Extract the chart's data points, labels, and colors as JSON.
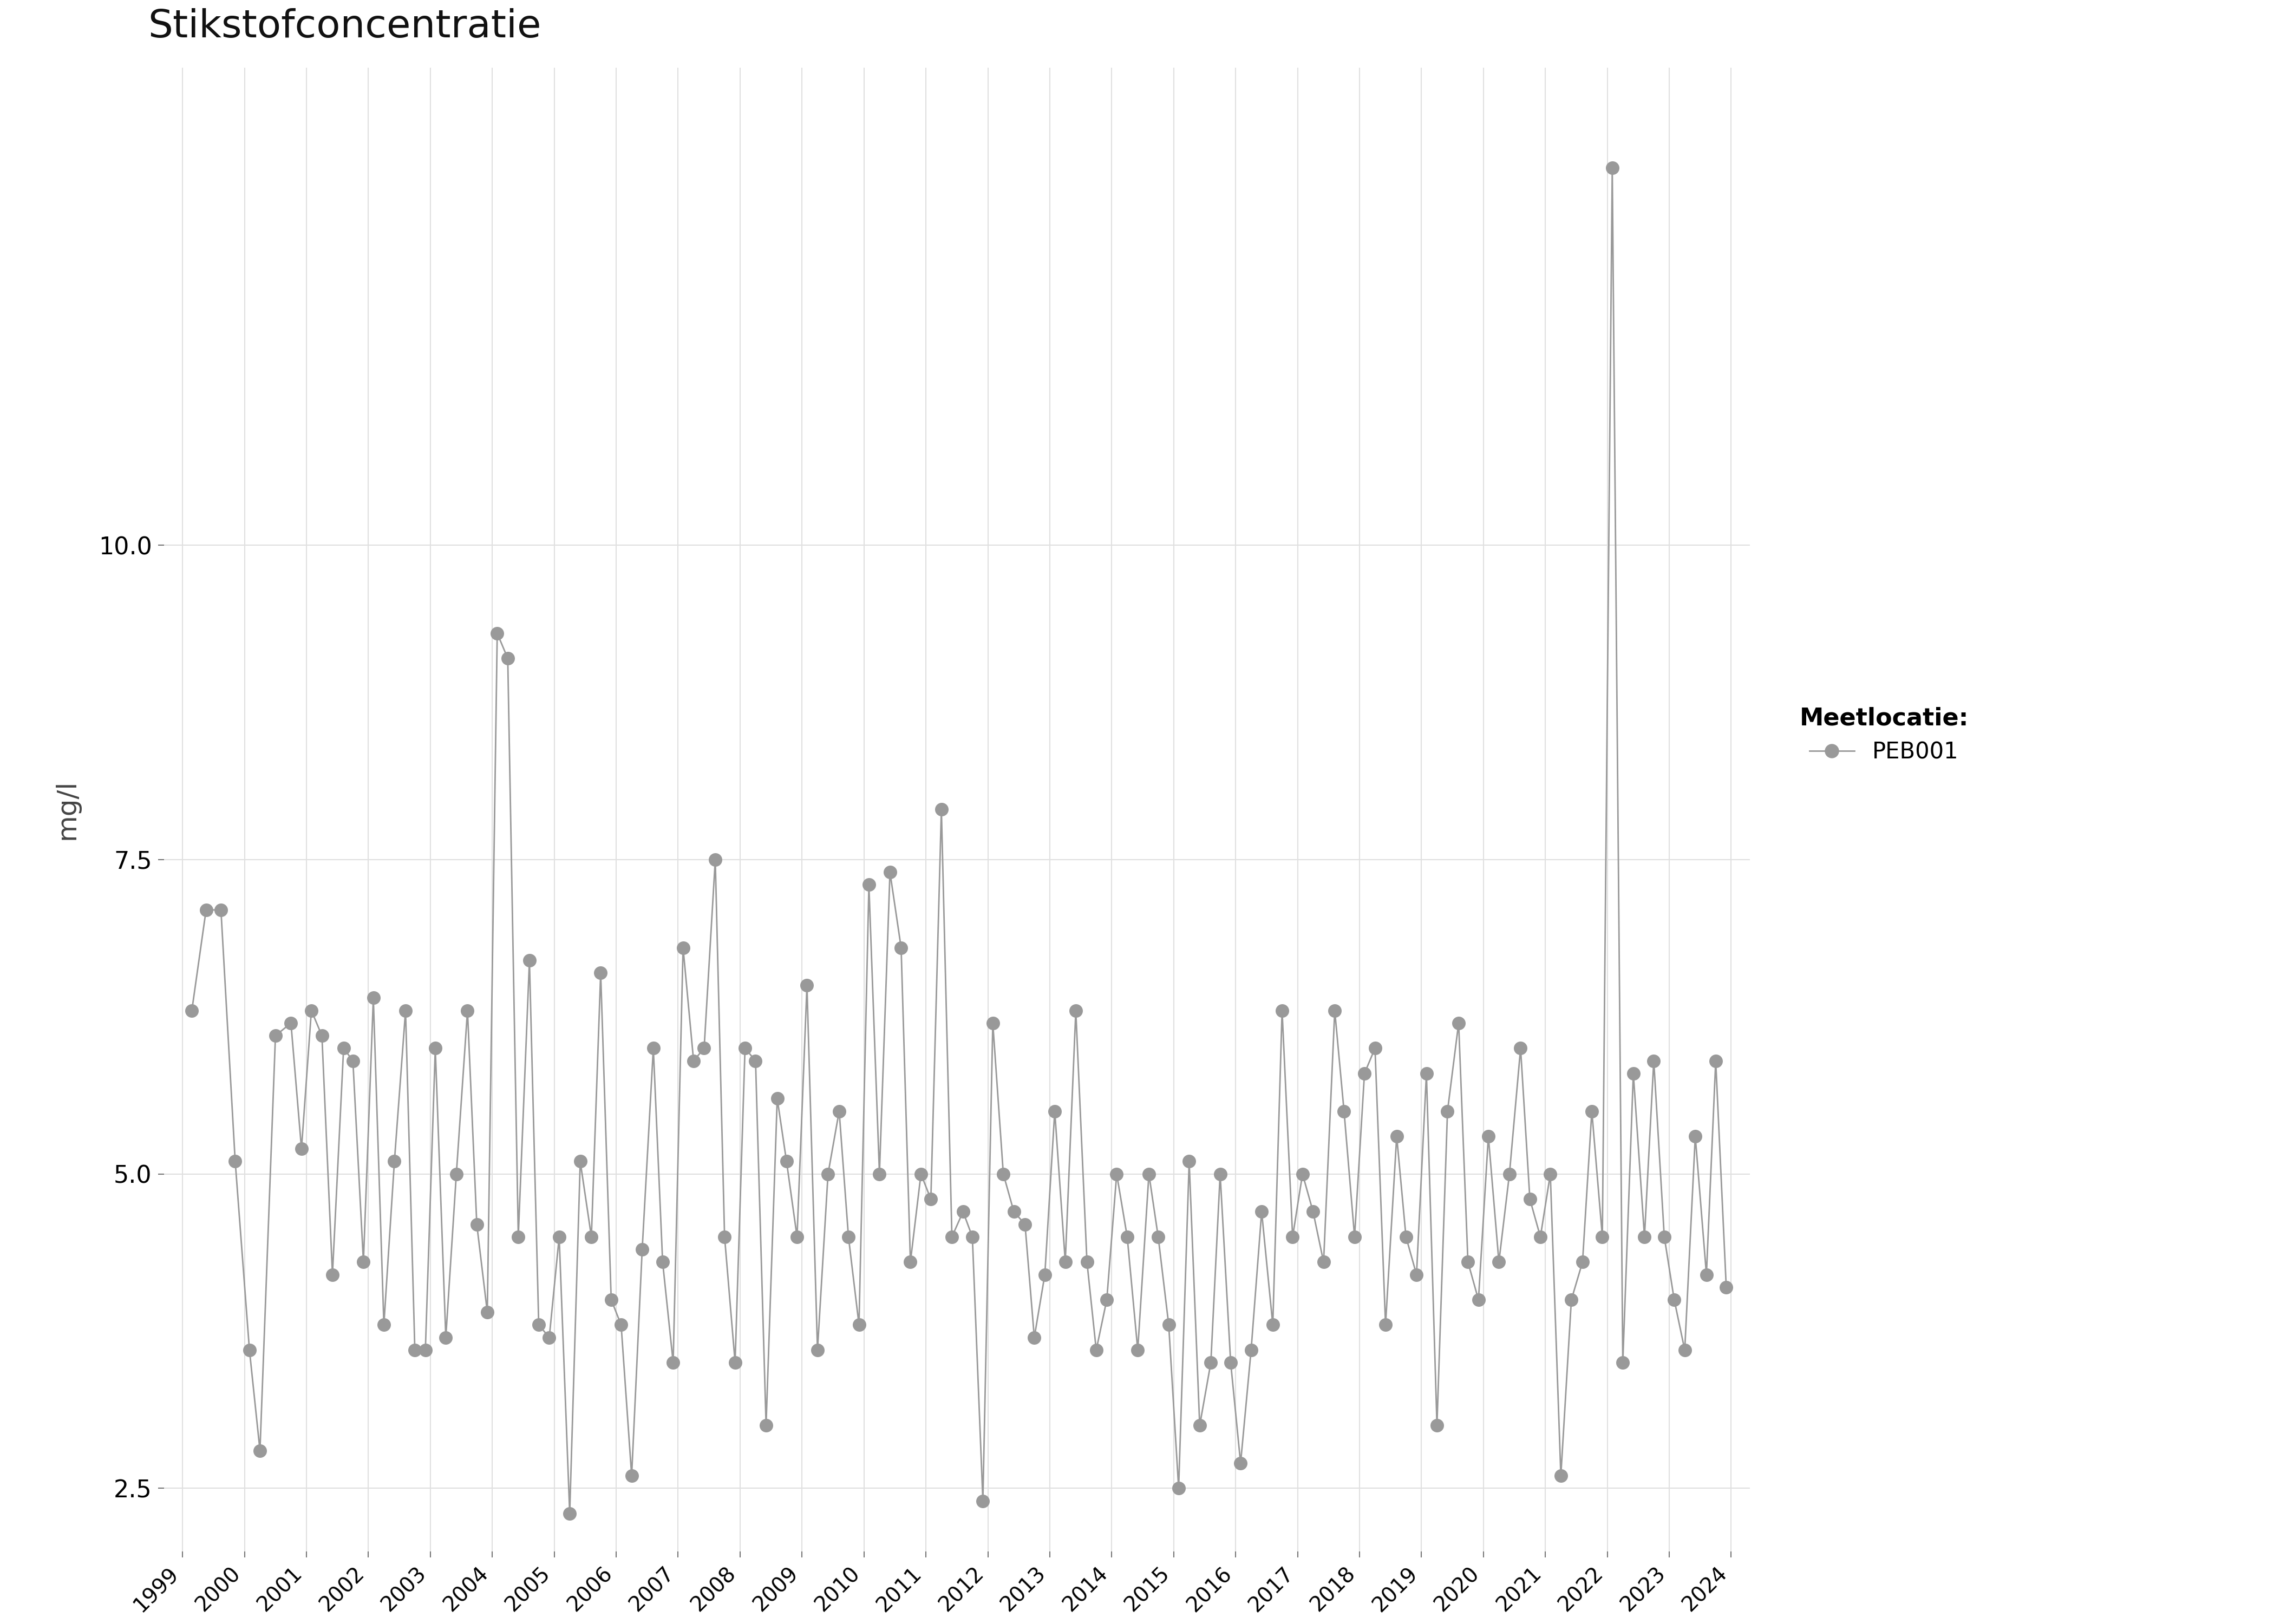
{
  "title": "Stikstofconcentratie",
  "ylabel": "mg/l",
  "legend_title": "Meetlocatie:",
  "legend_label": "PEB001",
  "line_color": "#999999",
  "marker_color": "#999999",
  "marker_size": 18,
  "line_width": 2.0,
  "background_color": "#ffffff",
  "grid_color": "#e0e0e0",
  "xlim": [
    1998.7,
    2024.3
  ],
  "ylim": [
    2.0,
    13.8
  ],
  "yticks": [
    2.5,
    5.0,
    7.5,
    10.0
  ],
  "xtick_years": [
    1999,
    2000,
    2001,
    2002,
    2003,
    2004,
    2005,
    2006,
    2007,
    2008,
    2009,
    2010,
    2011,
    2012,
    2013,
    2014,
    2015,
    2016,
    2017,
    2018,
    2019,
    2020,
    2021,
    2022,
    2023,
    2024
  ],
  "data": [
    [
      1999.15,
      6.3
    ],
    [
      1999.38,
      7.1
    ],
    [
      1999.62,
      7.1
    ],
    [
      1999.85,
      5.1
    ],
    [
      2000.08,
      3.6
    ],
    [
      2000.25,
      2.8
    ],
    [
      2000.5,
      6.1
    ],
    [
      2000.75,
      6.2
    ],
    [
      2000.92,
      5.2
    ],
    [
      2001.08,
      6.3
    ],
    [
      2001.25,
      6.1
    ],
    [
      2001.42,
      4.2
    ],
    [
      2001.6,
      6.0
    ],
    [
      2001.75,
      5.9
    ],
    [
      2001.92,
      4.3
    ],
    [
      2002.08,
      6.4
    ],
    [
      2002.25,
      3.8
    ],
    [
      2002.42,
      5.1
    ],
    [
      2002.6,
      6.3
    ],
    [
      2002.75,
      3.6
    ],
    [
      2002.92,
      3.6
    ],
    [
      2003.08,
      6.0
    ],
    [
      2003.25,
      3.7
    ],
    [
      2003.42,
      5.0
    ],
    [
      2003.6,
      6.3
    ],
    [
      2003.75,
      4.6
    ],
    [
      2003.92,
      3.9
    ],
    [
      2004.08,
      9.3
    ],
    [
      2004.25,
      9.1
    ],
    [
      2004.42,
      4.5
    ],
    [
      2004.6,
      6.7
    ],
    [
      2004.75,
      3.8
    ],
    [
      2004.92,
      3.7
    ],
    [
      2005.08,
      4.5
    ],
    [
      2005.25,
      2.3
    ],
    [
      2005.42,
      5.1
    ],
    [
      2005.6,
      4.5
    ],
    [
      2005.75,
      6.6
    ],
    [
      2005.92,
      4.0
    ],
    [
      2006.08,
      3.8
    ],
    [
      2006.25,
      2.6
    ],
    [
      2006.42,
      4.4
    ],
    [
      2006.6,
      6.0
    ],
    [
      2006.75,
      4.3
    ],
    [
      2006.92,
      3.5
    ],
    [
      2007.08,
      6.8
    ],
    [
      2007.25,
      5.9
    ],
    [
      2007.42,
      6.0
    ],
    [
      2007.6,
      7.5
    ],
    [
      2007.75,
      4.5
    ],
    [
      2007.92,
      3.5
    ],
    [
      2008.08,
      6.0
    ],
    [
      2008.25,
      5.9
    ],
    [
      2008.42,
      3.0
    ],
    [
      2008.6,
      5.6
    ],
    [
      2008.75,
      5.1
    ],
    [
      2008.92,
      4.5
    ],
    [
      2009.08,
      6.5
    ],
    [
      2009.25,
      3.6
    ],
    [
      2009.42,
      5.0
    ],
    [
      2009.6,
      5.5
    ],
    [
      2009.75,
      4.5
    ],
    [
      2009.92,
      3.8
    ],
    [
      2010.08,
      7.3
    ],
    [
      2010.25,
      5.0
    ],
    [
      2010.42,
      7.4
    ],
    [
      2010.6,
      6.8
    ],
    [
      2010.75,
      4.3
    ],
    [
      2010.92,
      5.0
    ],
    [
      2011.08,
      4.8
    ],
    [
      2011.25,
      7.9
    ],
    [
      2011.42,
      4.5
    ],
    [
      2011.6,
      4.7
    ],
    [
      2011.75,
      4.5
    ],
    [
      2011.92,
      2.4
    ],
    [
      2012.08,
      6.2
    ],
    [
      2012.25,
      5.0
    ],
    [
      2012.42,
      4.7
    ],
    [
      2012.6,
      4.6
    ],
    [
      2012.75,
      3.7
    ],
    [
      2012.92,
      4.2
    ],
    [
      2013.08,
      5.5
    ],
    [
      2013.25,
      4.3
    ],
    [
      2013.42,
      6.3
    ],
    [
      2013.6,
      4.3
    ],
    [
      2013.75,
      3.6
    ],
    [
      2013.92,
      4.0
    ],
    [
      2014.08,
      5.0
    ],
    [
      2014.25,
      4.5
    ],
    [
      2014.42,
      3.6
    ],
    [
      2014.6,
      5.0
    ],
    [
      2014.75,
      4.5
    ],
    [
      2014.92,
      3.8
    ],
    [
      2015.08,
      2.5
    ],
    [
      2015.25,
      5.1
    ],
    [
      2015.42,
      3.0
    ],
    [
      2015.6,
      3.5
    ],
    [
      2015.75,
      5.0
    ],
    [
      2015.92,
      3.5
    ],
    [
      2016.08,
      2.7
    ],
    [
      2016.25,
      3.6
    ],
    [
      2016.42,
      4.7
    ],
    [
      2016.6,
      3.8
    ],
    [
      2016.75,
      6.3
    ],
    [
      2016.92,
      4.5
    ],
    [
      2017.08,
      5.0
    ],
    [
      2017.25,
      4.7
    ],
    [
      2017.42,
      4.3
    ],
    [
      2017.6,
      6.3
    ],
    [
      2017.75,
      5.5
    ],
    [
      2017.92,
      4.5
    ],
    [
      2018.08,
      5.8
    ],
    [
      2018.25,
      6.0
    ],
    [
      2018.42,
      3.8
    ],
    [
      2018.6,
      5.3
    ],
    [
      2018.75,
      4.5
    ],
    [
      2018.92,
      4.2
    ],
    [
      2019.08,
      5.8
    ],
    [
      2019.25,
      3.0
    ],
    [
      2019.42,
      5.5
    ],
    [
      2019.6,
      6.2
    ],
    [
      2019.75,
      4.3
    ],
    [
      2019.92,
      4.0
    ],
    [
      2020.08,
      5.3
    ],
    [
      2020.25,
      4.3
    ],
    [
      2020.42,
      5.0
    ],
    [
      2020.6,
      6.0
    ],
    [
      2020.75,
      4.8
    ],
    [
      2020.92,
      4.5
    ],
    [
      2021.08,
      5.0
    ],
    [
      2021.25,
      2.6
    ],
    [
      2021.42,
      4.0
    ],
    [
      2021.6,
      4.3
    ],
    [
      2021.75,
      5.5
    ],
    [
      2021.92,
      4.5
    ],
    [
      2022.08,
      13.0
    ],
    [
      2022.25,
      3.5
    ],
    [
      2022.42,
      5.8
    ],
    [
      2022.6,
      4.5
    ],
    [
      2022.75,
      5.9
    ],
    [
      2022.92,
      4.5
    ],
    [
      2023.08,
      4.0
    ],
    [
      2023.25,
      3.6
    ],
    [
      2023.42,
      5.3
    ],
    [
      2023.6,
      4.2
    ],
    [
      2023.75,
      5.9
    ],
    [
      2023.92,
      4.1
    ]
  ]
}
